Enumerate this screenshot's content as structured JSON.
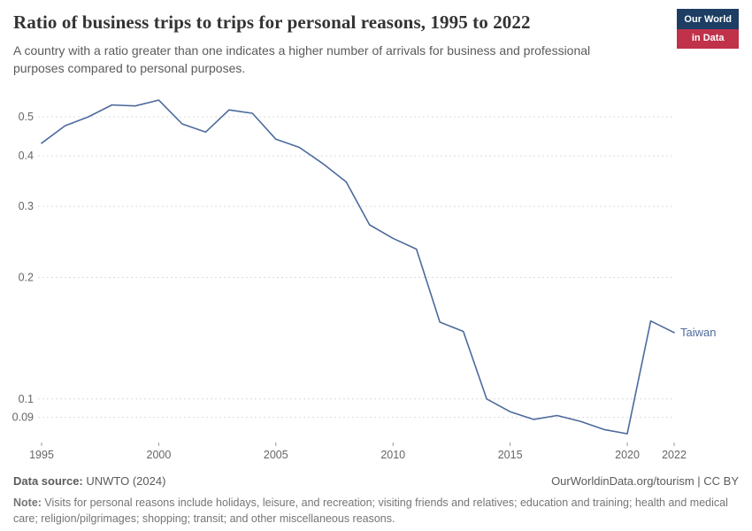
{
  "header": {
    "title": "Ratio of business trips to trips for personal reasons, 1995 to 2022",
    "subtitle": "A country with a ratio greater than one indicates a higher number of arrivals for business and professional purposes compared to personal purposes.",
    "logo": {
      "line1": "Our World",
      "line2": "in Data"
    }
  },
  "chart_data": {
    "type": "line",
    "title": "Ratio of business trips to trips for personal reasons, 1995 to 2022",
    "yscale": "log",
    "grid": true,
    "x": [
      1995,
      1996,
      1997,
      1998,
      1999,
      2000,
      2001,
      2002,
      2003,
      2004,
      2005,
      2006,
      2007,
      2008,
      2009,
      2010,
      2011,
      2012,
      2013,
      2014,
      2015,
      2016,
      2017,
      2018,
      2019,
      2020,
      2021,
      2022
    ],
    "series": [
      {
        "name": "Taiwan",
        "color": "#4c6a9c",
        "values": [
          0.43,
          0.475,
          0.5,
          0.535,
          0.532,
          0.55,
          0.48,
          0.458,
          0.52,
          0.51,
          0.44,
          0.42,
          0.383,
          0.345,
          0.27,
          0.25,
          0.235,
          0.155,
          0.147,
          0.1,
          0.093,
          0.089,
          0.091,
          0.088,
          0.084,
          0.082,
          0.156,
          0.146
        ]
      }
    ],
    "x_ticks": [
      1995,
      2000,
      2005,
      2010,
      2015,
      2020,
      2022
    ],
    "y_ticks": [
      0.09,
      0.1,
      0.2,
      0.3,
      0.4,
      0.5
    ],
    "xlim": [
      1995,
      2022
    ],
    "ylim": [
      0.078,
      0.57
    ],
    "legend_position": "end-of-line"
  },
  "footer": {
    "source_label": "Data source:",
    "source_value": " UNWTO (2024)",
    "link": "OurWorldinData.org/tourism | CC BY",
    "note_label": "Note:",
    "note_text": " Visits for personal reasons include holidays, leisure, and recreation; visiting friends and relatives; education and training; health and medical care; religion/pilgrimages; shopping; transit; and other miscellaneous reasons."
  },
  "colors": {
    "line": "#4c6a9c",
    "grid": "#dcdcdc",
    "axis_text": "#666666",
    "tick_mark": "#999999",
    "logo_navy": "#1d3d63",
    "logo_red": "#c0314a"
  }
}
